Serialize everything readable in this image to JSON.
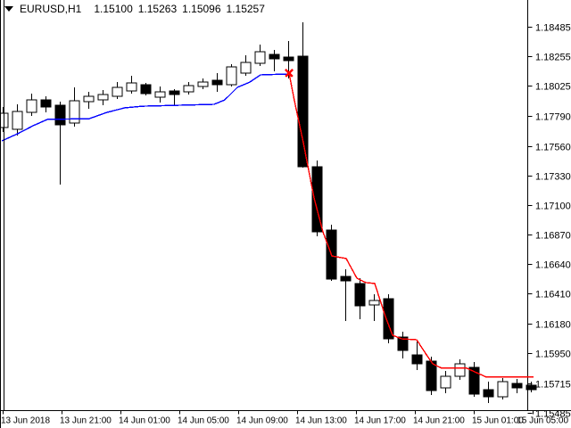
{
  "header": {
    "symbol_period": "EURUSD,H1",
    "open": "1.15100",
    "high": "1.15263",
    "low": "1.15096",
    "close": "1.15257"
  },
  "colors": {
    "background": "#ffffff",
    "foreground": "#000000",
    "bull_body": "#ffffff",
    "bear_body": "#000000",
    "candle_outline": "#000000",
    "ma_blue": "#0000ff",
    "ma_red": "#ff0000",
    "marker": "#ff0000"
  },
  "chart_data": {
    "type": "candlestick",
    "symbol": "EURUSD",
    "timeframe": "H1",
    "grid": "off",
    "legend": "none",
    "price_axis_side": "right",
    "price_top_label_value": 1.18485,
    "price_bottom_label_value": 1.15485,
    "price_labels": [
      "1.18485",
      "1.18255",
      "1.18025",
      "1.17790",
      "1.17560",
      "1.17330",
      "1.17100",
      "1.16870",
      "1.16640",
      "1.16410",
      "1.16180",
      "1.15950",
      "1.15715",
      "1.15485"
    ],
    "time_labels": [
      "13 Jun 2018",
      "13 Jun 21:00",
      "14 Jun 01:00",
      "14 Jun 05:00",
      "14 Jun 09:00",
      "14 Jun 13:00",
      "14 Jun 17:00",
      "14 Jun 21:00",
      "15 Jun 01:00",
      "15 Jun 05:00"
    ],
    "candles": [
      [
        1.17702,
        1.17862,
        1.17668,
        1.17813
      ],
      [
        1.17688,
        1.17882,
        1.1764,
        1.17827
      ],
      [
        1.1782,
        1.17965,
        1.17792,
        1.17917
      ],
      [
        1.17917,
        1.17945,
        1.1782,
        1.17862
      ],
      [
        1.17875,
        1.17903,
        1.17259,
        1.17723
      ],
      [
        1.17737,
        1.18014,
        1.17709,
        1.1791
      ],
      [
        1.17903,
        1.17979,
        1.17848,
        1.17945
      ],
      [
        1.17917,
        1.17993,
        1.17875,
        1.17959
      ],
      [
        1.17945,
        1.18055,
        1.17924,
        1.18014
      ],
      [
        1.17986,
        1.18104,
        1.17965,
        1.18049
      ],
      [
        1.18035,
        1.18049,
        1.17951,
        1.17965
      ],
      [
        1.17938,
        1.18021,
        1.17896,
        1.17979
      ],
      [
        1.17986,
        1.18,
        1.17868,
        1.17959
      ],
      [
        1.17979,
        1.18055,
        1.17959,
        1.18028
      ],
      [
        1.18021,
        1.18083,
        1.18,
        1.18055
      ],
      [
        1.18069,
        1.18125,
        1.17979,
        1.18035
      ],
      [
        1.18035,
        1.18194,
        1.18021,
        1.18173
      ],
      [
        1.18125,
        1.18263,
        1.18104,
        1.18208
      ],
      [
        1.18201,
        1.18346,
        1.1818,
        1.18291
      ],
      [
        1.1827,
        1.18305,
        1.18139,
        1.18236
      ],
      [
        1.18249,
        1.18374,
        1.18083,
        1.18222
      ],
      [
        1.18256,
        1.1852,
        1.1739,
        1.17397
      ],
      [
        1.17397,
        1.17446,
        1.16857,
        1.16891
      ],
      [
        1.16905,
        1.16947,
        1.1651,
        1.16524
      ],
      [
        1.16545,
        1.16601,
        1.16199,
        1.1651
      ],
      [
        1.1649,
        1.16531,
        1.16213,
        1.16316
      ],
      [
        1.16323,
        1.16406,
        1.16199,
        1.16358
      ],
      [
        1.16372,
        1.16406,
        1.16026,
        1.1606
      ],
      [
        1.16074,
        1.16115,
        1.15908,
        1.1597
      ],
      [
        1.15936,
        1.1604,
        1.15818,
        1.15866
      ],
      [
        1.15887,
        1.15922,
        1.15624,
        1.15659
      ],
      [
        1.1568,
        1.15811,
        1.15638,
        1.1577
      ],
      [
        1.1577,
        1.159,
        1.15742,
        1.15866
      ],
      [
        1.15838,
        1.1588,
        1.1561,
        1.15631
      ],
      [
        1.15666,
        1.15728,
        1.15562,
        1.1561
      ],
      [
        1.1561,
        1.15756,
        1.15589,
        1.15728
      ],
      [
        1.15714,
        1.15749,
        1.15638,
        1.1568
      ],
      [
        1.157,
        1.15728,
        1.15645,
        1.15666
      ]
    ],
    "overlays": [
      {
        "name": "ma-blue",
        "color": "#0000ff",
        "points": [
          [
            -0.06,
            1.17598
          ],
          [
            1.06,
            1.17654
          ],
          [
            2.13,
            1.17716
          ],
          [
            3.13,
            1.17765
          ],
          [
            6.06,
            1.17771
          ],
          [
            7.31,
            1.1782
          ],
          [
            8.56,
            1.17855
          ],
          [
            9.81,
            1.17868
          ],
          [
            14.81,
            1.17882
          ],
          [
            15.56,
            1.17917
          ],
          [
            16.44,
            1.18014
          ],
          [
            17.31,
            1.18055
          ],
          [
            18.06,
            1.18111
          ],
          [
            19.94,
            1.18118
          ],
          [
            20.06,
            1.18125
          ]
        ]
      },
      {
        "name": "ma-red",
        "color": "#ff0000",
        "points": [
          [
            20.06,
            1.18125
          ],
          [
            20.44,
            1.1791
          ],
          [
            21.06,
            1.17584
          ],
          [
            21.81,
            1.17155
          ],
          [
            22.44,
            1.16891
          ],
          [
            23.06,
            1.16704
          ],
          [
            24.06,
            1.16684
          ],
          [
            24.81,
            1.16531
          ],
          [
            25.44,
            1.16497
          ],
          [
            26.06,
            1.1649
          ],
          [
            26.81,
            1.16233
          ],
          [
            27.31,
            1.16088
          ],
          [
            27.94,
            1.1606
          ],
          [
            29.0,
            1.16053
          ],
          [
            29.69,
            1.15936
          ],
          [
            30.13,
            1.15866
          ],
          [
            30.75,
            1.15832
          ],
          [
            32.5,
            1.15832
          ],
          [
            33.88,
            1.15763
          ],
          [
            37.19,
            1.15763
          ]
        ]
      }
    ],
    "marker": {
      "shape": "cross",
      "color": "#ff0000",
      "index": 20.06,
      "price": 1.18125
    }
  }
}
